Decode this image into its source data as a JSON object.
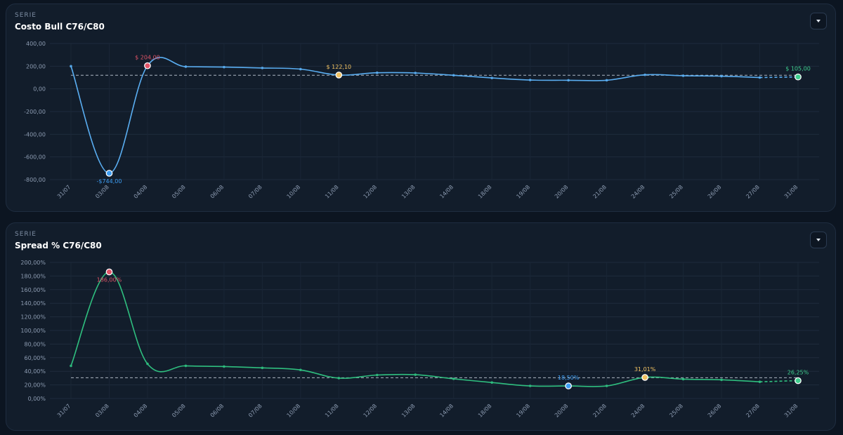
{
  "charts": [
    {
      "serie_label": "SERIE",
      "title": "Costo Bull C76/C80",
      "line_color": "#5aaef2",
      "chart_data": {
        "type": "line",
        "title": "Costo Bull C76/C80",
        "x": [
          "31/07",
          "03/08",
          "04/08",
          "05/08",
          "06/08",
          "07/08",
          "10/08",
          "11/08",
          "12/08",
          "13/08",
          "14/08",
          "18/08",
          "19/08",
          "20/08",
          "21/08",
          "24/08",
          "25/08",
          "26/08",
          "27/08",
          "31/08"
        ],
        "values": [
          200,
          -744,
          204,
          196,
          192,
          184,
          174,
          122.1,
          142,
          140,
          120,
          96,
          78,
          76,
          76,
          124,
          116,
          112,
          100,
          105
        ],
        "projected_from_index": 18,
        "ylim": [
          -800,
          400
        ],
        "yticks": [
          400,
          200,
          0,
          -200,
          -400,
          -600,
          -800
        ],
        "ytick_labels": [
          "400,00",
          "200,00",
          "0,00",
          "-200,00",
          "-400,00",
          "-600,00",
          "-800,00"
        ],
        "average": 120,
        "grid": true,
        "markers": [
          {
            "index": 1,
            "label": "-$744,00",
            "color": "#3d9df2",
            "label_pos": "below"
          },
          {
            "index": 2,
            "label": "$ 204,00",
            "color": "#e05468",
            "label_pos": "above"
          },
          {
            "index": 7,
            "label": "$ 122,10",
            "color": "#f2c262",
            "label_pos": "above"
          },
          {
            "index": 19,
            "label": "$ 105,00",
            "color": "#3fcf8e",
            "label_pos": "above"
          }
        ]
      }
    },
    {
      "serie_label": "SERIE",
      "title": "Spread % C76/C80",
      "line_color": "#2fbf7f",
      "chart_data": {
        "type": "line",
        "title": "Spread % C76/C80",
        "x": [
          "31/07",
          "03/08",
          "04/08",
          "05/08",
          "06/08",
          "07/08",
          "10/08",
          "11/08",
          "12/08",
          "13/08",
          "14/08",
          "18/08",
          "19/08",
          "20/08",
          "21/08",
          "24/08",
          "25/08",
          "26/08",
          "27/08",
          "31/08"
        ],
        "values": [
          48,
          186,
          51,
          48,
          47,
          45,
          42,
          30,
          34.5,
          35,
          29,
          23.5,
          18.5,
          18.5,
          18.5,
          31.01,
          28.5,
          27.5,
          24.5,
          26.25
        ],
        "projected_from_index": 18,
        "ylim": [
          0,
          200
        ],
        "yticks": [
          200,
          180,
          160,
          140,
          120,
          100,
          80,
          60,
          40,
          20,
          0
        ],
        "ytick_labels": [
          "200,00%",
          "180,00%",
          "160,00%",
          "140,00%",
          "120,00%",
          "100,00%",
          "80,00%",
          "60,00%",
          "40,00%",
          "20,00%",
          "0,00%"
        ],
        "average": 30.5,
        "grid": true,
        "markers": [
          {
            "index": 1,
            "label": "186,00%",
            "color": "#e05468",
            "label_pos": "below"
          },
          {
            "index": 13,
            "label": "18,50%",
            "color": "#3d9df2",
            "label_pos": "above"
          },
          {
            "index": 15,
            "label": "31,01%",
            "color": "#f2c262",
            "label_pos": "above"
          },
          {
            "index": 19,
            "label": "26,25%",
            "color": "#3fcf8e",
            "label_pos": "above"
          }
        ]
      }
    }
  ]
}
